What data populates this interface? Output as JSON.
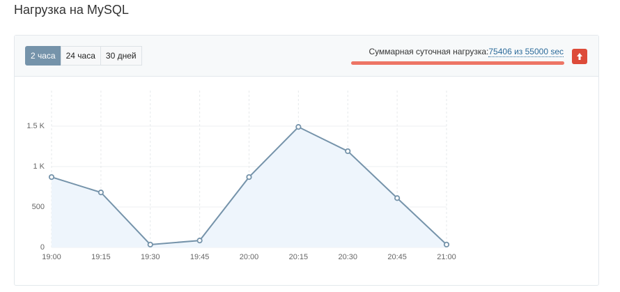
{
  "page_title": "Нагрузка на MySQL",
  "tabs": [
    "2 часа",
    "24 часа",
    "30 дней"
  ],
  "summary": {
    "label": "Суммарная суточная нагрузка:",
    "value": "75406 из 55000 sec"
  },
  "chart_data": {
    "type": "line",
    "categories": [
      "19:00",
      "19:15",
      "19:30",
      "19:45",
      "20:00",
      "20:15",
      "20:30",
      "20:45",
      "21:00"
    ],
    "values": [
      870,
      680,
      35,
      85,
      870,
      1490,
      1190,
      610,
      35
    ],
    "color": "#7593aa",
    "area_color": "#eef5fc",
    "ylim": [
      0,
      2000
    ],
    "yticks": [
      0,
      500,
      {
        "value": 1000,
        "label": "1 K"
      },
      {
        "value": 1500,
        "label": "1.5 K"
      }
    ],
    "grid": true
  }
}
